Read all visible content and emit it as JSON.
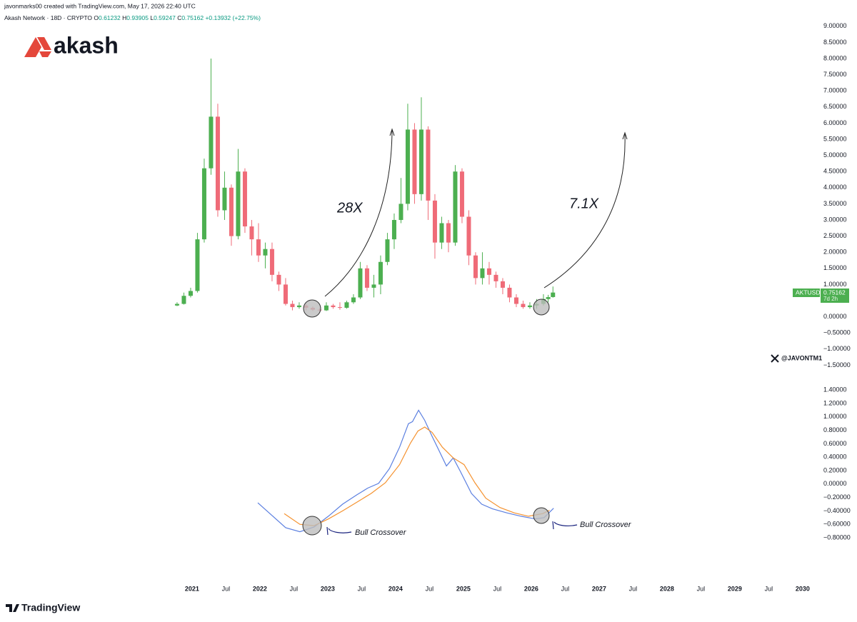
{
  "header": {
    "author": "javonmarks00 created with TradingView.com, May 17, 2026 22:40 UTC",
    "symbol": "Akash Network · 18D · CRYPTO",
    "ohlc_labels": [
      "O",
      "H",
      "L",
      "C"
    ],
    "change": "+0.13932 (+22.75%)"
  },
  "branding": {
    "logo": "akash",
    "symbol_tag": "AKTUSD",
    "countdown": "7d 2h",
    "watermark": "@JAVONTM1",
    "footer": "TradingView"
  },
  "chart_data": [
    {
      "type": "candlestick",
      "up_color": "#4caf50",
      "down_color": "#ef6b78",
      "xlim": [
        2018.17,
        2030.17
      ],
      "ylim": [
        -1.8,
        9.15
      ],
      "yticks": [
        {
          "value": 9,
          "label": "9.00000"
        },
        {
          "value": 8.5,
          "label": "8.50000"
        },
        {
          "value": 8,
          "label": "8.00000"
        },
        {
          "value": 7.5,
          "label": "7.50000"
        },
        {
          "value": 7,
          "label": "7.00000"
        },
        {
          "value": 6.5,
          "label": "6.50000"
        },
        {
          "value": 6,
          "label": "6.00000"
        },
        {
          "value": 5.5,
          "label": "5.50000"
        },
        {
          "value": 5,
          "label": "5.00000"
        },
        {
          "value": 4.5,
          "label": "4.50000"
        },
        {
          "value": 4,
          "label": "4.00000"
        },
        {
          "value": 3.5,
          "label": "3.50000"
        },
        {
          "value": 3,
          "label": "3.00000"
        },
        {
          "value": 2.5,
          "label": "2.50000"
        },
        {
          "value": 2,
          "label": "2.00000"
        },
        {
          "value": 1.5,
          "label": "1.50000"
        },
        {
          "value": 1,
          "label": "1.00000"
        },
        {
          "value": 0,
          "label": "0.00000"
        },
        {
          "value": -0.5,
          "label": "−0.50000"
        },
        {
          "value": -1,
          "label": "−1.00000"
        },
        {
          "value": -1.5,
          "label": "−1.50000"
        }
      ],
      "annotations": [
        "28X",
        "7.1X"
      ],
      "x": [
        2020.78,
        2020.88,
        2020.98,
        2021.08,
        2021.18,
        2021.28,
        2021.38,
        2021.48,
        2021.58,
        2021.68,
        2021.78,
        2021.88,
        2021.98,
        2022.08,
        2022.18,
        2022.28,
        2022.38,
        2022.48,
        2022.58,
        2022.68,
        2022.78,
        2022.88,
        2022.98,
        2023.08,
        2023.18,
        2023.28,
        2023.38,
        2023.48,
        2023.58,
        2023.68,
        2023.78,
        2023.88,
        2023.98,
        2024.08,
        2024.18,
        2024.28,
        2024.38,
        2024.48,
        2024.58,
        2024.68,
        2024.78,
        2024.88,
        2024.98,
        2025.08,
        2025.18,
        2025.28,
        2025.38,
        2025.48,
        2025.58,
        2025.68,
        2025.78,
        2025.88,
        2025.98,
        2026.08,
        2026.18,
        2026.25,
        2026.32
      ],
      "open": [
        0.35,
        0.4,
        0.65,
        0.8,
        2.4,
        4.6,
        6.2,
        3.3,
        4.0,
        2.5,
        4.5,
        2.8,
        2.4,
        1.9,
        2.1,
        1.3,
        1.0,
        0.4,
        0.3,
        0.35,
        0.28,
        0.22,
        0.2,
        0.35,
        0.3,
        0.28,
        0.45,
        0.6,
        1.5,
        0.9,
        1.0,
        1.7,
        2.4,
        3.0,
        3.5,
        5.8,
        3.8,
        5.8,
        3.6,
        2.3,
        2.9,
        2.3,
        4.5,
        3.1,
        1.9,
        1.2,
        1.5,
        1.3,
        1.1,
        0.9,
        0.6,
        0.4,
        0.3,
        0.35,
        0.4,
        0.55,
        0.61232
      ],
      "high": [
        0.45,
        0.75,
        0.9,
        2.6,
        4.9,
        8.0,
        6.6,
        4.5,
        4.1,
        5.2,
        4.6,
        3.0,
        2.9,
        2.3,
        2.3,
        1.4,
        1.2,
        0.5,
        0.45,
        0.4,
        0.32,
        0.26,
        0.45,
        0.4,
        0.45,
        0.5,
        0.7,
        1.7,
        1.6,
        1.3,
        1.9,
        2.6,
        3.2,
        4.3,
        6.6,
        6.0,
        6.8,
        5.9,
        3.8,
        3.1,
        3.0,
        4.7,
        4.6,
        3.3,
        2.0,
        2.0,
        1.7,
        1.4,
        1.2,
        1.0,
        0.7,
        0.5,
        0.45,
        0.55,
        0.7,
        0.68,
        0.93905
      ],
      "low": [
        0.33,
        0.38,
        0.6,
        0.75,
        2.3,
        4.4,
        3.1,
        3.0,
        2.2,
        2.4,
        2.6,
        1.9,
        1.7,
        1.5,
        1.1,
        0.8,
        0.35,
        0.2,
        0.25,
        0.2,
        0.18,
        0.16,
        0.18,
        0.25,
        0.22,
        0.25,
        0.4,
        0.55,
        0.8,
        0.6,
        0.7,
        1.6,
        2.1,
        2.9,
        3.3,
        3.5,
        3.6,
        3.0,
        1.8,
        2.1,
        2.0,
        2.2,
        2.9,
        1.6,
        1.0,
        1.0,
        1.0,
        0.9,
        0.7,
        0.45,
        0.3,
        0.25,
        0.25,
        0.25,
        0.35,
        0.45,
        0.59247
      ],
      "close": [
        0.4,
        0.65,
        0.8,
        2.4,
        4.6,
        6.2,
        3.3,
        4.0,
        2.5,
        4.5,
        2.8,
        2.4,
        1.9,
        2.1,
        1.3,
        1.0,
        0.4,
        0.3,
        0.35,
        0.28,
        0.22,
        0.2,
        0.35,
        0.3,
        0.28,
        0.45,
        0.6,
        1.5,
        0.9,
        1.0,
        1.7,
        2.4,
        3.0,
        3.5,
        5.8,
        3.8,
        5.8,
        3.6,
        2.3,
        2.9,
        2.3,
        4.5,
        3.1,
        1.9,
        1.2,
        1.5,
        1.3,
        1.1,
        0.9,
        0.6,
        0.4,
        0.3,
        0.35,
        0.4,
        0.55,
        0.61,
        0.75162
      ]
    },
    {
      "type": "line",
      "xlim": [
        2018.17,
        2030.17
      ],
      "ylim": [
        -1.3,
        1.52
      ],
      "yticks": [
        {
          "value": 1.4,
          "label": "1.40000"
        },
        {
          "value": 1.2,
          "label": "1.20000"
        },
        {
          "value": 1,
          "label": "1.00000"
        },
        {
          "value": 0.8,
          "label": "0.80000"
        },
        {
          "value": 0.6,
          "label": "0.60000"
        },
        {
          "value": 0.4,
          "label": "0.40000"
        },
        {
          "value": 0.2,
          "label": "0.20000"
        },
        {
          "value": 0,
          "label": "0.00000"
        },
        {
          "value": -0.2,
          "label": "−0.20000"
        },
        {
          "value": -0.4,
          "label": "−0.40000"
        },
        {
          "value": -0.6,
          "label": "−0.60000"
        },
        {
          "value": -0.8,
          "label": "−0.80000"
        }
      ],
      "xticks": [
        2021,
        {
          "value": 2021.5,
          "label": "Jul"
        },
        2022,
        {
          "value": 2022.5,
          "label": "Jul"
        },
        2023,
        {
          "value": 2023.5,
          "label": "Jul"
        },
        2024,
        {
          "value": 2024.5,
          "label": "Jul"
        },
        2025,
        {
          "value": 2025.5,
          "label": "Jul"
        },
        2026,
        {
          "value": 2026.5,
          "label": "Jul"
        },
        2027,
        {
          "value": 2027.5,
          "label": "Jul"
        },
        2028,
        {
          "value": 2028.5,
          "label": "Jul"
        },
        2029,
        {
          "value": 2029.5,
          "label": "Jul"
        },
        2030
      ],
      "annotations": [
        "Bull Crossover",
        "Bull Crossover"
      ],
      "series": [
        {
          "color": "#5b7fe0",
          "x": [
            2021.97,
            2022.17,
            2022.38,
            2022.59,
            2022.8,
            2023.01,
            2023.22,
            2023.43,
            2023.59,
            2023.75,
            2023.91,
            2024.06,
            2024.19,
            2024.25,
            2024.34,
            2024.43,
            2024.54,
            2024.64,
            2024.75,
            2024.85,
            2024.96,
            2025.12,
            2025.27,
            2025.43,
            2025.64,
            2025.85,
            2026.06,
            2026.19,
            2026.33
          ],
          "values": [
            -0.28,
            -0.46,
            -0.65,
            -0.71,
            -0.64,
            -0.48,
            -0.3,
            -0.16,
            -0.06,
            0.01,
            0.23,
            0.55,
            0.9,
            0.93,
            1.1,
            0.95,
            0.71,
            0.5,
            0.27,
            0.39,
            0.18,
            -0.14,
            -0.3,
            -0.37,
            -0.43,
            -0.48,
            -0.52,
            -0.5,
            -0.36
          ]
        },
        {
          "color": "#f5922f",
          "x": [
            2022.36,
            2022.59,
            2022.8,
            2023.01,
            2023.22,
            2023.43,
            2023.64,
            2023.85,
            2024.06,
            2024.22,
            2024.33,
            2024.43,
            2024.54,
            2024.69,
            2024.85,
            2025.01,
            2025.17,
            2025.33,
            2025.54,
            2025.75,
            2025.96,
            2026.17,
            2026.27
          ],
          "values": [
            -0.44,
            -0.6,
            -0.62,
            -0.52,
            -0.4,
            -0.27,
            -0.14,
            0.02,
            0.29,
            0.61,
            0.79,
            0.85,
            0.77,
            0.55,
            0.39,
            0.29,
            0.02,
            -0.21,
            -0.35,
            -0.43,
            -0.48,
            -0.44,
            -0.39
          ]
        }
      ]
    }
  ]
}
